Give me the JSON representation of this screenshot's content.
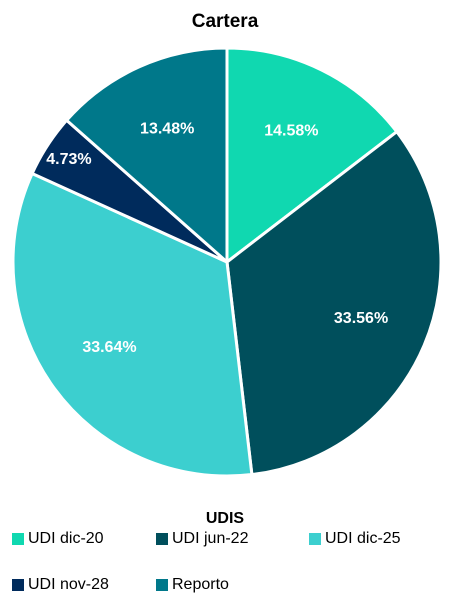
{
  "chart_data": {
    "type": "pie",
    "title": "Cartera",
    "legend_title": "UDIS",
    "categories": [
      "UDI dic-20",
      "UDI jun-22",
      "UDI dic-25",
      "UDI nov-28",
      "Reporto"
    ],
    "values": [
      14.58,
      33.56,
      33.64,
      4.73,
      13.48
    ],
    "value_labels": [
      "14.58%",
      "33.56%",
      "33.64%",
      "4.73%",
      "13.48%"
    ],
    "colors": [
      "#10d8b0",
      "#004f5c",
      "#3ccfcf",
      "#002b5c",
      "#00788a"
    ],
    "legend": "bottom"
  }
}
